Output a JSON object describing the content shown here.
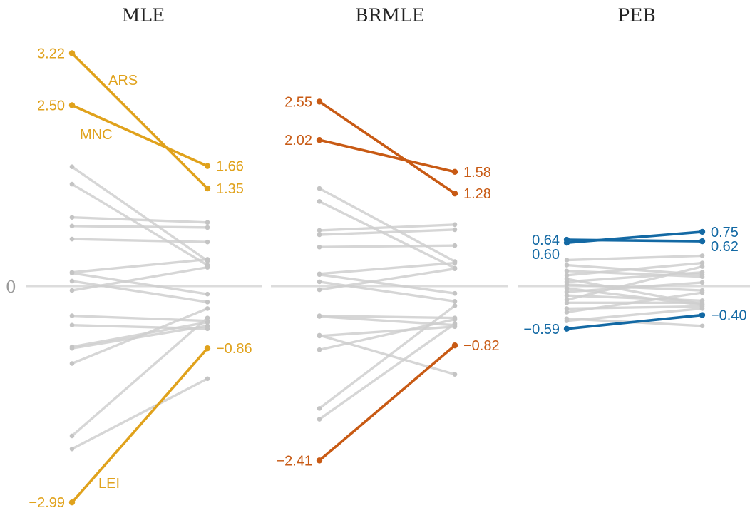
{
  "zero_label": "0",
  "colors": {
    "background": "#ffffff",
    "baseline": "#dcdcdc",
    "grey_line": "#cfcfcf",
    "grey_point": "#c4c4c4",
    "MLE": "#e0a21c",
    "BRMLE": "#c85a14",
    "PEB": "#1369a4"
  },
  "chart_data": [
    {
      "type": "line",
      "title": "MLE",
      "x": [
        "left",
        "right"
      ],
      "ylim": [
        -3.1,
        3.35
      ],
      "grid": false,
      "highlighted": [
        {
          "name": "ARS",
          "values": [
            3.22,
            1.35
          ],
          "labels": [
            "3.22",
            "1.35"
          ]
        },
        {
          "name": "MNC",
          "values": [
            2.5,
            1.66
          ],
          "labels": [
            "2.50",
            "1.66"
          ]
        },
        {
          "name": "LEI",
          "values": [
            -2.99,
            -0.86
          ],
          "labels": [
            "−2.99",
            "−0.86"
          ]
        }
      ],
      "background_series": [
        [
          1.65,
          0.35
        ],
        [
          1.41,
          0.29
        ],
        [
          0.95,
          0.88
        ],
        [
          0.83,
          0.81
        ],
        [
          0.65,
          0.61
        ],
        [
          0.19,
          0.37
        ],
        [
          0.18,
          -0.11
        ],
        [
          0.07,
          -0.22
        ],
        [
          -0.06,
          0.26
        ],
        [
          -0.41,
          -0.48
        ],
        [
          -0.54,
          -0.59
        ],
        [
          -0.84,
          -0.5
        ],
        [
          -0.86,
          -0.55
        ],
        [
          -1.07,
          -0.31
        ],
        [
          -2.07,
          -0.44
        ],
        [
          -2.25,
          -1.28
        ]
      ]
    },
    {
      "type": "line",
      "title": "BRMLE",
      "x": [
        "left",
        "right"
      ],
      "ylim": [
        -3.1,
        3.35
      ],
      "grid": false,
      "highlighted": [
        {
          "name": "",
          "values": [
            2.55,
            1.28
          ],
          "labels": [
            "2.55",
            "1.28"
          ]
        },
        {
          "name": "",
          "values": [
            2.02,
            1.58
          ],
          "labels": [
            "2.02",
            "1.58"
          ]
        },
        {
          "name": "",
          "values": [
            -2.41,
            -0.82
          ],
          "labels": [
            "−2.41",
            "−0.82"
          ]
        }
      ],
      "background_series": [
        [
          1.35,
          0.34
        ],
        [
          1.17,
          0.25
        ],
        [
          0.77,
          0.85
        ],
        [
          0.71,
          0.78
        ],
        [
          0.54,
          0.56
        ],
        [
          0.17,
          0.32
        ],
        [
          0.16,
          -0.1
        ],
        [
          0.06,
          -0.21
        ],
        [
          -0.05,
          0.24
        ],
        [
          -0.41,
          -0.44
        ],
        [
          -0.42,
          -0.54
        ],
        [
          -0.69,
          -0.56
        ],
        [
          -0.88,
          -0.46
        ],
        [
          -1.69,
          -0.27
        ],
        [
          -1.84,
          -0.52
        ],
        [
          -0.68,
          -1.22
        ]
      ]
    },
    {
      "type": "line",
      "title": "PEB",
      "x": [
        "left",
        "right"
      ],
      "ylim": [
        -3.1,
        3.35
      ],
      "grid": false,
      "highlighted": [
        {
          "name": "",
          "values": [
            0.64,
            0.62
          ],
          "labels": [
            "0.64",
            "0.62"
          ]
        },
        {
          "name": "",
          "values": [
            0.6,
            0.75
          ],
          "labels": [
            "0.60",
            "0.75"
          ]
        },
        {
          "name": "",
          "values": [
            -0.59,
            -0.4
          ],
          "labels": [
            "−0.59",
            "−0.40"
          ]
        }
      ],
      "background_series": [
        [
          0.36,
          0.42
        ],
        [
          0.29,
          0.16
        ],
        [
          0.21,
          0.13
        ],
        [
          0.15,
          0.32
        ],
        [
          0.1,
          -0.25
        ],
        [
          0.06,
          0.19
        ],
        [
          0.02,
          -0.06
        ],
        [
          -0.03,
          -0.26
        ],
        [
          -0.08,
          0.05
        ],
        [
          -0.13,
          -0.2
        ],
        [
          -0.19,
          0.27
        ],
        [
          -0.23,
          -0.23
        ],
        [
          -0.31,
          -0.28
        ],
        [
          -0.36,
          -0.09
        ],
        [
          -0.45,
          -0.55
        ],
        [
          -0.48,
          -0.31
        ]
      ]
    }
  ]
}
